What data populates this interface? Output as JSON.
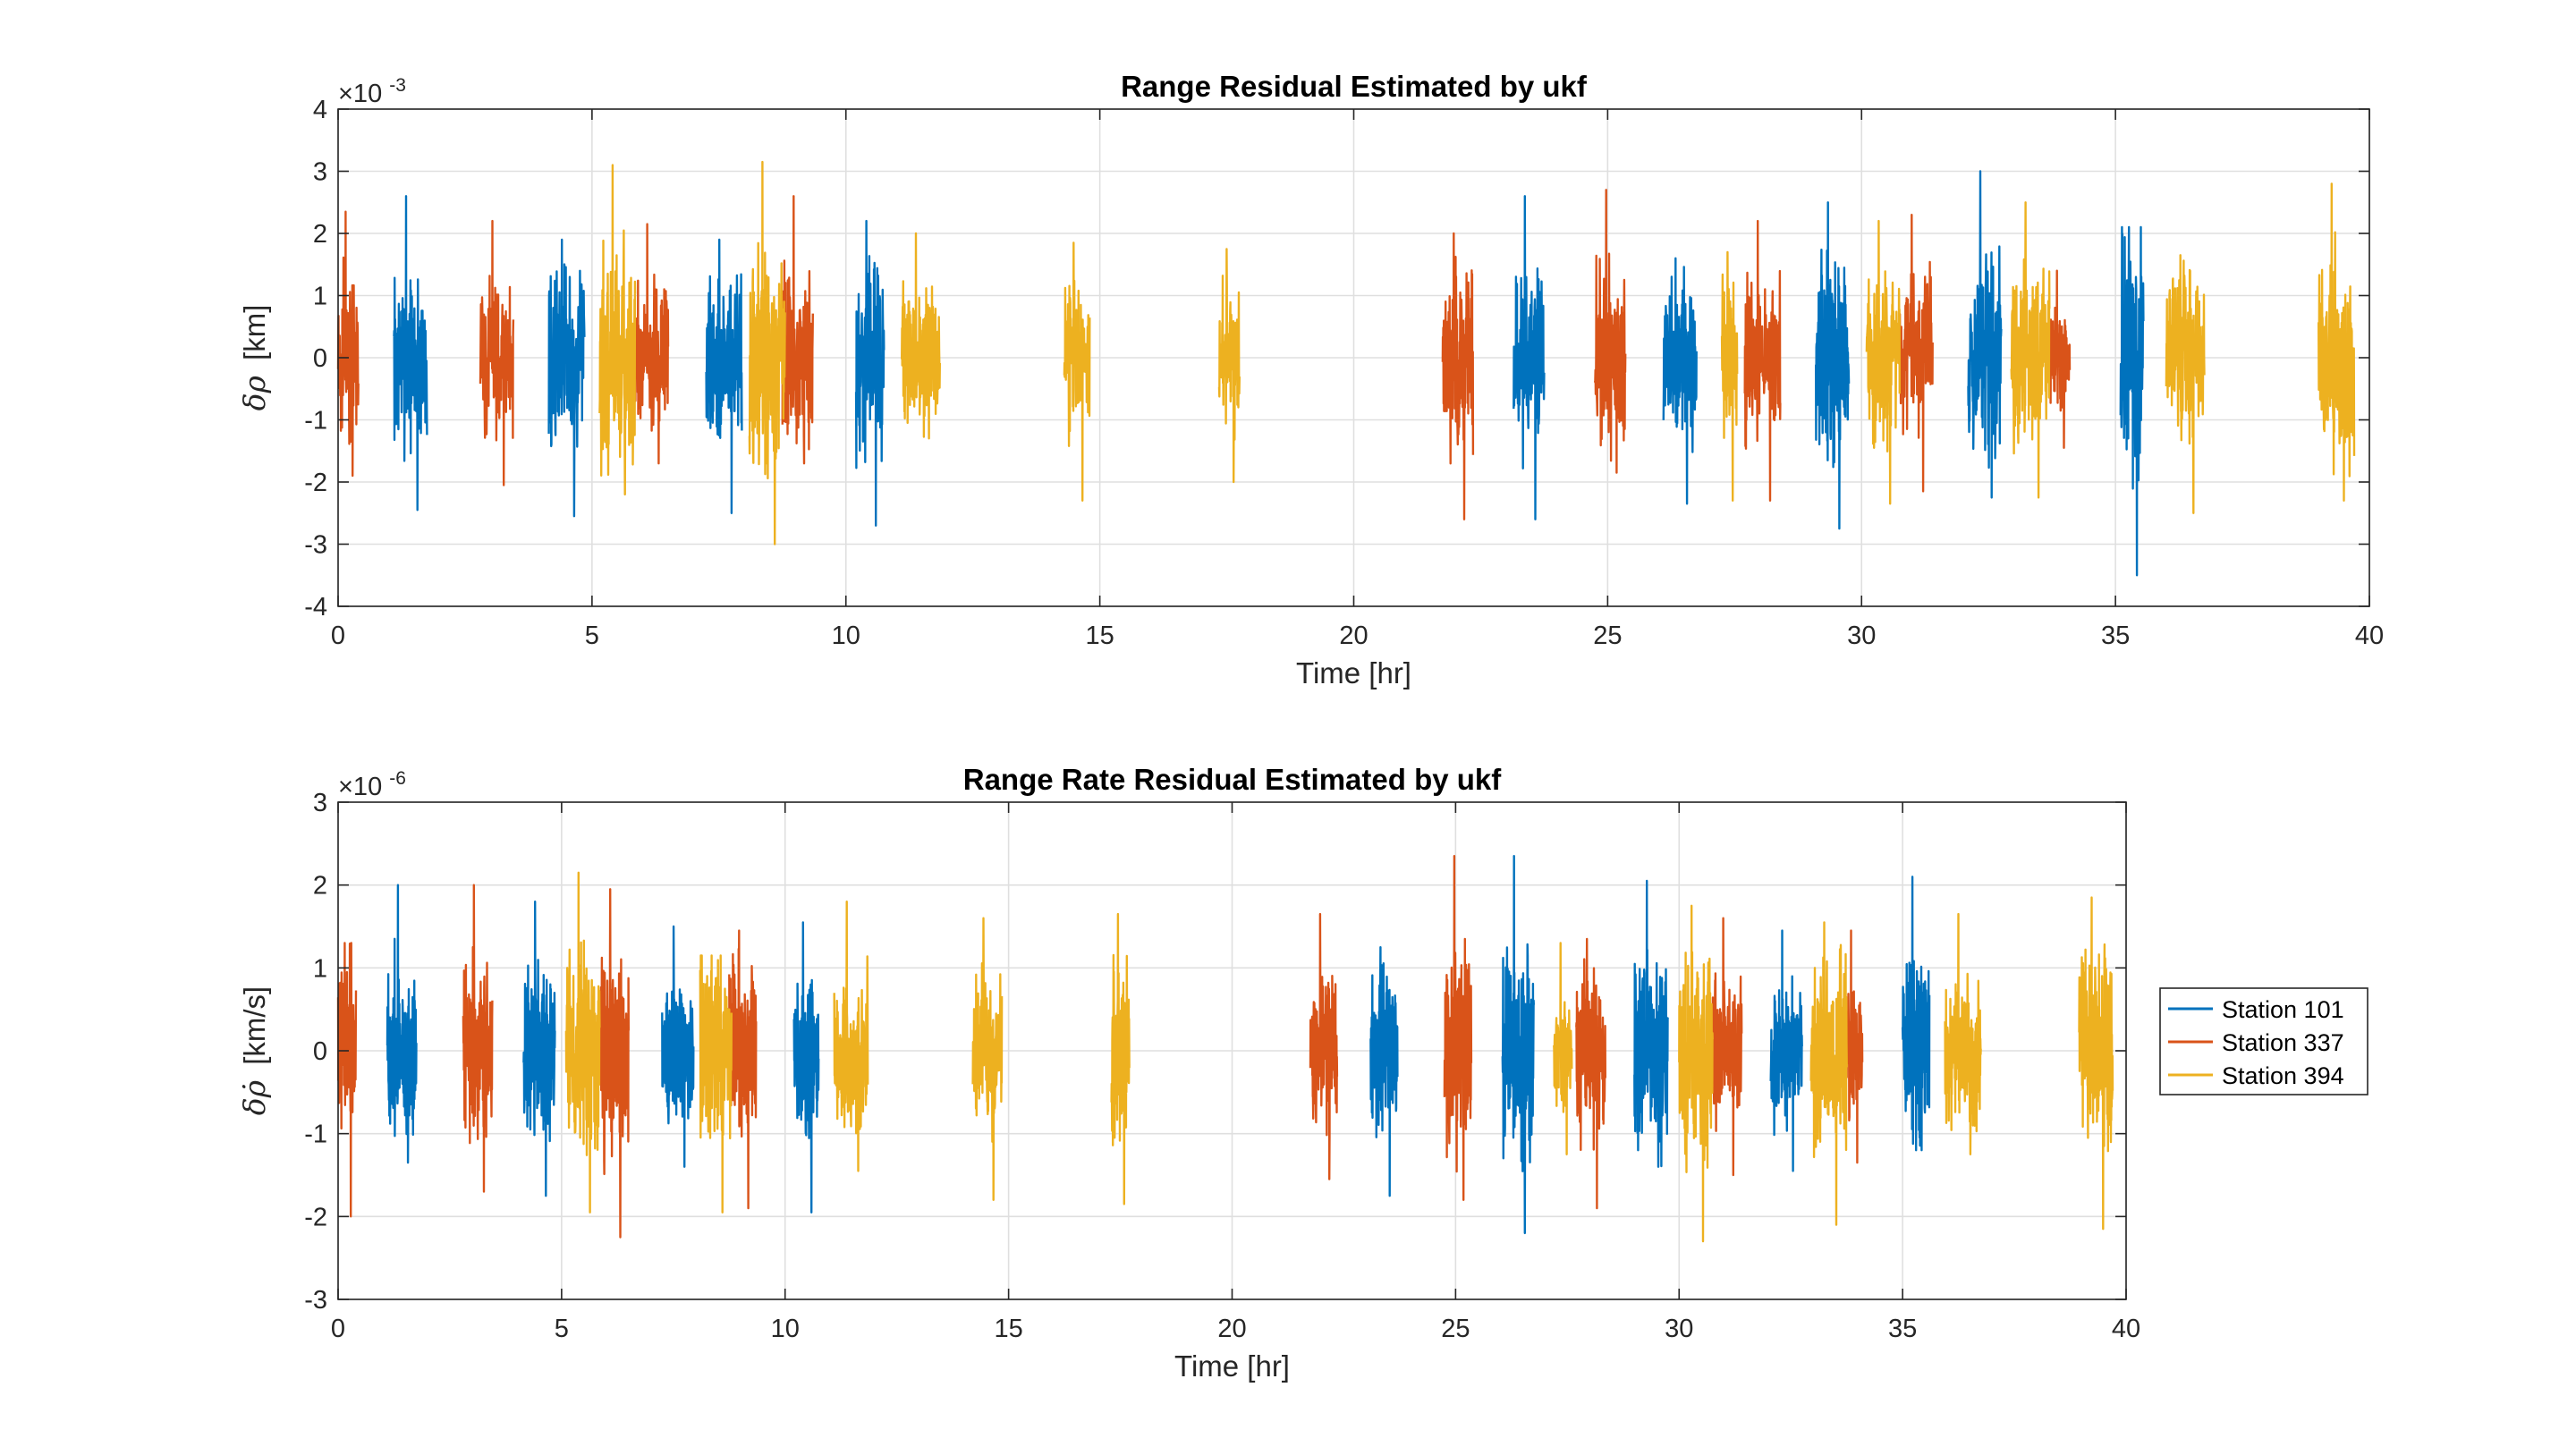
{
  "chart_data": [
    {
      "type": "line",
      "title": "Range Residual Estimated by ukf",
      "xlabel": "Time [hr]",
      "ylabel": "δρ [km]",
      "ylabel_symbol": "δρ",
      "ylabel_unit": "[km]",
      "exponent_label": "×10",
      "exponent_power": "-3",
      "xlim": [
        0,
        40
      ],
      "ylim": [
        -4,
        4
      ],
      "xticks": [
        0,
        5,
        10,
        15,
        20,
        25,
        30,
        35,
        40
      ],
      "yticks": [
        -4,
        -3,
        -2,
        -1,
        0,
        1,
        2,
        3,
        4
      ],
      "grid": true,
      "series": [
        {
          "name": "Station 101",
          "color": "#0072BD",
          "passes": [
            {
              "start": 1.1,
              "end": 1.75,
              "min": -2.45,
              "max": 2.6
            },
            {
              "start": 4.15,
              "end": 4.85,
              "min": -2.55,
              "max": 1.9
            },
            {
              "start": 7.25,
              "end": 7.95,
              "min": -2.5,
              "max": 1.9
            },
            {
              "start": 10.2,
              "end": 10.75,
              "min": -2.7,
              "max": 2.2
            },
            {
              "start": 23.15,
              "end": 23.75,
              "min": -2.6,
              "max": 2.6
            },
            {
              "start": 26.1,
              "end": 26.75,
              "min": -2.35,
              "max": 1.6
            },
            {
              "start": 29.1,
              "end": 29.75,
              "min": -2.75,
              "max": 2.5
            },
            {
              "start": 32.1,
              "end": 32.75,
              "min": -2.25,
              "max": 3.0
            },
            {
              "start": 35.1,
              "end": 35.55,
              "min": -3.5,
              "max": 2.1
            }
          ]
        },
        {
          "name": "Station 337",
          "color": "#D95319",
          "passes": [
            {
              "start": 0.0,
              "end": 0.4,
              "min": -1.9,
              "max": 2.35
            },
            {
              "start": 2.8,
              "end": 3.45,
              "min": -2.05,
              "max": 2.2
            },
            {
              "start": 5.85,
              "end": 6.5,
              "min": -1.7,
              "max": 2.15
            },
            {
              "start": 8.75,
              "end": 9.35,
              "min": -1.7,
              "max": 2.6
            },
            {
              "start": 21.75,
              "end": 22.35,
              "min": -2.6,
              "max": 2.0
            },
            {
              "start": 24.75,
              "end": 25.35,
              "min": -1.85,
              "max": 2.7
            },
            {
              "start": 27.7,
              "end": 28.4,
              "min": -2.3,
              "max": 2.2
            },
            {
              "start": 30.75,
              "end": 31.4,
              "min": -2.15,
              "max": 2.3
            },
            {
              "start": 33.7,
              "end": 34.1,
              "min": -1.45,
              "max": 1.4
            }
          ]
        },
        {
          "name": "Station 394",
          "color": "#EDB120",
          "passes": [
            {
              "start": 5.15,
              "end": 5.85,
              "min": -2.2,
              "max": 3.1
            },
            {
              "start": 8.1,
              "end": 8.8,
              "min": -3.0,
              "max": 3.15
            },
            {
              "start": 11.1,
              "end": 11.85,
              "min": -1.3,
              "max": 2.0
            },
            {
              "start": 14.3,
              "end": 14.8,
              "min": -2.3,
              "max": 1.85
            },
            {
              "start": 17.35,
              "end": 17.75,
              "min": -2.0,
              "max": 1.75
            },
            {
              "start": 27.25,
              "end": 27.55,
              "min": -2.3,
              "max": 1.7
            },
            {
              "start": 30.1,
              "end": 30.75,
              "min": -2.35,
              "max": 2.2
            },
            {
              "start": 32.95,
              "end": 33.7,
              "min": -2.25,
              "max": 2.5
            },
            {
              "start": 36.0,
              "end": 36.75,
              "min": -2.5,
              "max": 1.65
            },
            {
              "start": 39.0,
              "end": 39.7,
              "min": -2.3,
              "max": 2.8
            }
          ]
        }
      ]
    },
    {
      "type": "line",
      "title": "Range Rate Residual Estimated by ukf",
      "xlabel": "Time [hr]",
      "ylabel": "δρ̇ [km/s]",
      "ylabel_symbol": "δρ̇",
      "ylabel_unit": "[km/s]",
      "exponent_label": "×10",
      "exponent_power": "-6",
      "xlim": [
        0,
        40
      ],
      "ylim": [
        -3,
        3
      ],
      "xticks": [
        0,
        5,
        10,
        15,
        20,
        25,
        30,
        35,
        40
      ],
      "yticks": [
        -3,
        -2,
        -1,
        0,
        1,
        2,
        3
      ],
      "grid": true,
      "legend_position": "outside-right",
      "series": [
        {
          "name": "Station 101",
          "color": "#0072BD",
          "passes": [
            {
              "start": 1.1,
              "end": 1.75,
              "min": -1.35,
              "max": 2.0
            },
            {
              "start": 4.15,
              "end": 4.85,
              "min": -1.75,
              "max": 1.8
            },
            {
              "start": 7.25,
              "end": 7.95,
              "min": -1.4,
              "max": 1.5
            },
            {
              "start": 10.2,
              "end": 10.75,
              "min": -1.95,
              "max": 1.55
            },
            {
              "start": 23.1,
              "end": 23.7,
              "min": -1.75,
              "max": 1.25
            },
            {
              "start": 26.05,
              "end": 26.75,
              "min": -2.2,
              "max": 2.35
            },
            {
              "start": 29.0,
              "end": 29.75,
              "min": -1.4,
              "max": 2.05
            },
            {
              "start": 32.05,
              "end": 32.75,
              "min": -1.45,
              "max": 1.45
            },
            {
              "start": 35.0,
              "end": 35.6,
              "min": -1.2,
              "max": 2.1
            }
          ]
        },
        {
          "name": "Station 337",
          "color": "#D95319",
          "passes": [
            {
              "start": 0.0,
              "end": 0.4,
              "min": -2.0,
              "max": 1.3
            },
            {
              "start": 2.8,
              "end": 3.45,
              "min": -1.7,
              "max": 2.0
            },
            {
              "start": 5.85,
              "end": 6.5,
              "min": -2.25,
              "max": 1.95
            },
            {
              "start": 8.75,
              "end": 9.35,
              "min": -1.9,
              "max": 1.45
            },
            {
              "start": 21.75,
              "end": 22.35,
              "min": -1.55,
              "max": 1.65
            },
            {
              "start": 24.75,
              "end": 25.35,
              "min": -1.8,
              "max": 2.35
            },
            {
              "start": 27.7,
              "end": 28.35,
              "min": -1.9,
              "max": 1.35
            },
            {
              "start": 30.75,
              "end": 31.4,
              "min": -1.5,
              "max": 1.6
            },
            {
              "start": 33.7,
              "end": 34.1,
              "min": -1.35,
              "max": 1.45
            }
          ]
        },
        {
          "name": "Station 394",
          "color": "#EDB120",
          "passes": [
            {
              "start": 5.1,
              "end": 5.85,
              "min": -1.95,
              "max": 2.15
            },
            {
              "start": 8.1,
              "end": 8.8,
              "min": -1.95,
              "max": 1.15
            },
            {
              "start": 11.1,
              "end": 11.85,
              "min": -1.45,
              "max": 1.8
            },
            {
              "start": 14.2,
              "end": 14.85,
              "min": -1.8,
              "max": 1.6
            },
            {
              "start": 17.3,
              "end": 17.7,
              "min": -1.85,
              "max": 1.65
            },
            {
              "start": 27.2,
              "end": 27.6,
              "min": -1.25,
              "max": 1.3
            },
            {
              "start": 30.0,
              "end": 30.75,
              "min": -2.3,
              "max": 1.75
            },
            {
              "start": 32.95,
              "end": 33.75,
              "min": -2.1,
              "max": 1.55
            },
            {
              "start": 35.95,
              "end": 36.75,
              "min": -1.25,
              "max": 1.65
            },
            {
              "start": 38.95,
              "end": 39.7,
              "min": -2.15,
              "max": 1.85
            }
          ]
        }
      ]
    }
  ]
}
